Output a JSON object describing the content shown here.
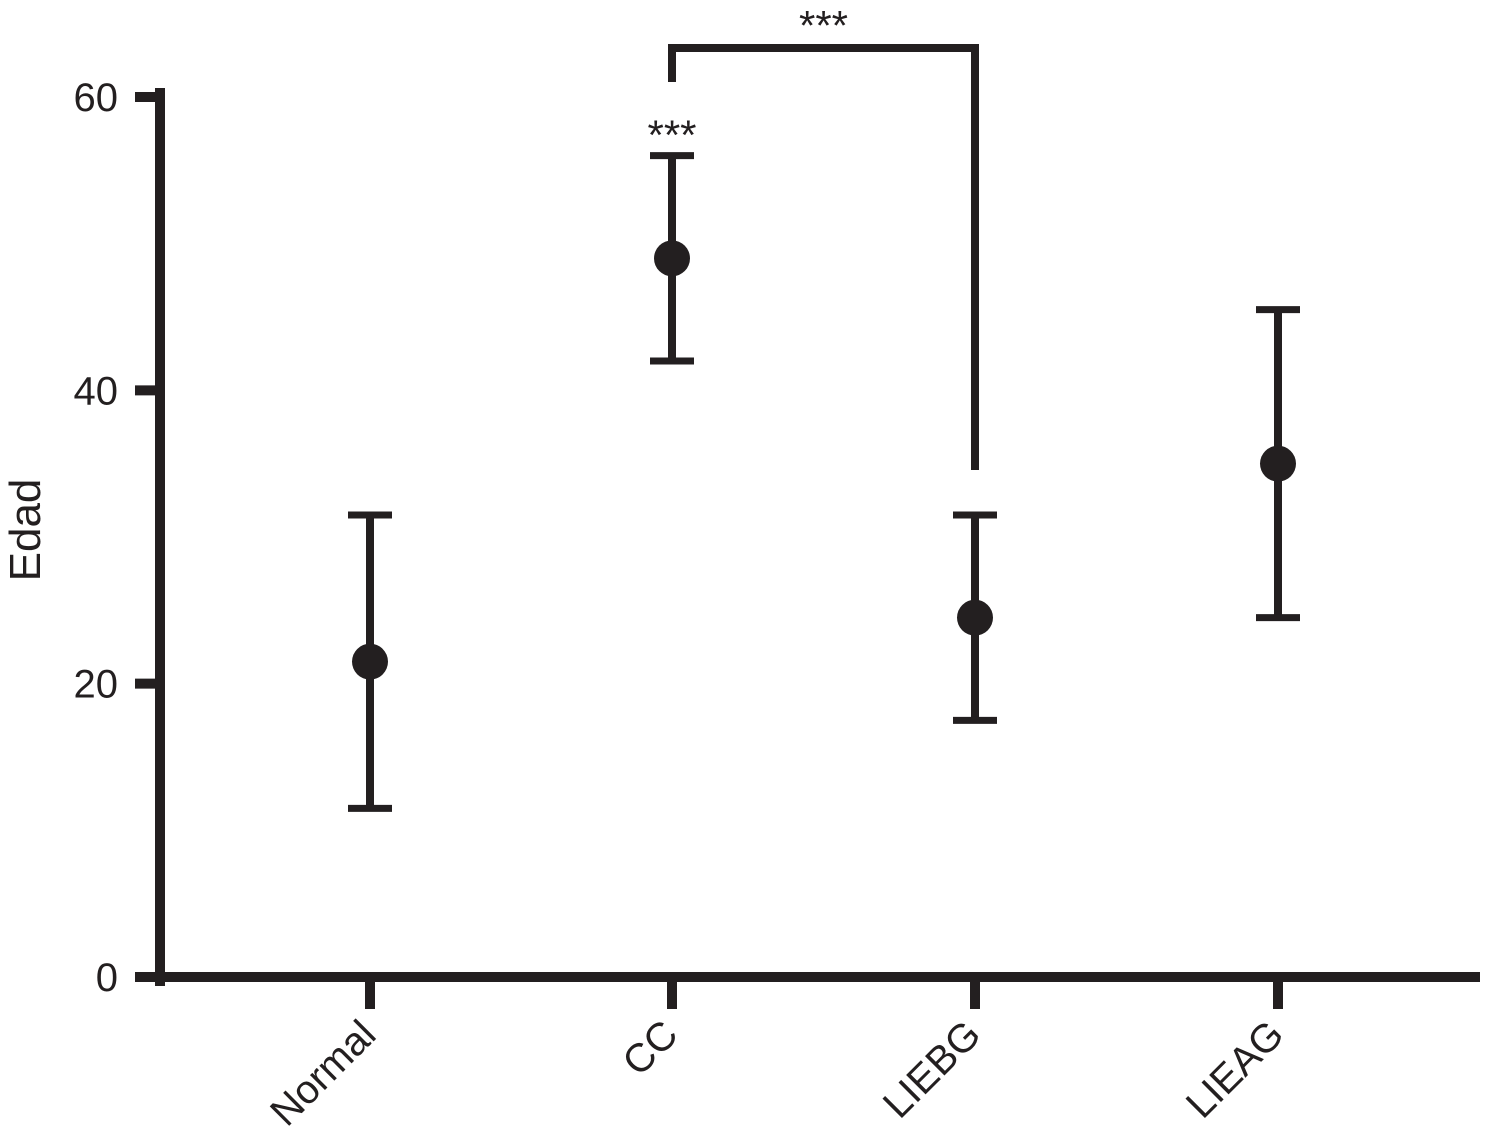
{
  "chart_data": {
    "type": "scatter",
    "xlabel": "",
    "ylabel": "Edad",
    "ylim": [
      0,
      60
    ],
    "yticks": [
      0,
      20,
      40,
      60
    ],
    "grid": false,
    "categories": [
      "Normal",
      "CC",
      "LIEBG",
      "LIEAG"
    ],
    "series": [
      {
        "mean": [
          21.5,
          49,
          24.5,
          35
        ],
        "lower": [
          11.5,
          42,
          17.5,
          24.5
        ],
        "upper": [
          31.5,
          56,
          31.5,
          45.5
        ]
      }
    ],
    "annotations": [
      {
        "text": "***",
        "category": "CC",
        "position": "above-error-bar"
      },
      {
        "text": "***",
        "from": "CC",
        "to": "LIEBG",
        "type": "bracket"
      }
    ],
    "colors": {
      "ink": "#231f20",
      "background": "#ffffff"
    }
  }
}
